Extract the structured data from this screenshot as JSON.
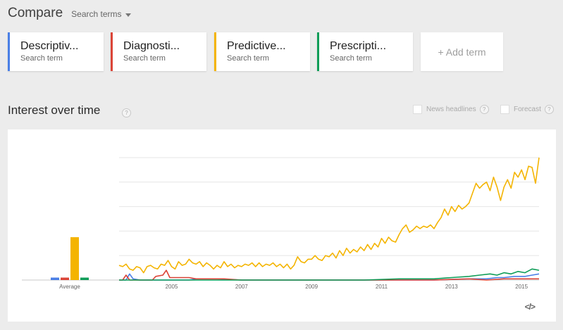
{
  "header": {
    "title": "Compare",
    "search_terms_label": "Search terms"
  },
  "terms": [
    {
      "name": "Descriptiv...",
      "sub": "Search term",
      "color": "#4a7fe6"
    },
    {
      "name": "Diagnosti...",
      "sub": "Search term",
      "color": "#db4437"
    },
    {
      "name": "Predictive...",
      "sub": "Search term",
      "color": "#f4b400"
    },
    {
      "name": "Prescripti...",
      "sub": "Search term",
      "color": "#0f9d58"
    }
  ],
  "add_term_label": "+ Add term",
  "section": {
    "title": "Interest over time",
    "help_glyph": "?"
  },
  "options": {
    "news_headlines": "News headlines",
    "forecast": "Forecast"
  },
  "embed_label": "</>",
  "chart_data": {
    "type": "line",
    "title": "",
    "xlabel": "",
    "ylabel": "",
    "x_range": [
      2004.0,
      2016.0
    ],
    "ylim": [
      0,
      100
    ],
    "x_ticks": [
      2005,
      2007,
      2009,
      2011,
      2013,
      2015
    ],
    "grid": true,
    "legend": "none",
    "average_bars": {
      "label": "Average",
      "values": [
        2,
        2,
        35,
        2
      ]
    },
    "series": [
      {
        "color": "#4a7fe6",
        "points": [
          [
            2004.0,
            0
          ],
          [
            2004.2,
            0
          ],
          [
            2004.3,
            5
          ],
          [
            2004.4,
            1
          ],
          [
            2004.6,
            0
          ],
          [
            2005.0,
            0
          ],
          [
            2006.0,
            0
          ],
          [
            2006.2,
            1
          ],
          [
            2006.8,
            1
          ],
          [
            2007.5,
            0
          ],
          [
            2009.0,
            0
          ],
          [
            2010.0,
            0
          ],
          [
            2011.0,
            0
          ],
          [
            2012.0,
            0
          ],
          [
            2013.0,
            0
          ],
          [
            2014.0,
            1
          ],
          [
            2014.5,
            1
          ],
          [
            2014.8,
            2
          ],
          [
            2015.0,
            2
          ],
          [
            2015.3,
            3
          ],
          [
            2015.6,
            3
          ],
          [
            2015.8,
            4
          ],
          [
            2016.0,
            5
          ]
        ]
      },
      {
        "color": "#db4437",
        "points": [
          [
            2004.0,
            0
          ],
          [
            2004.1,
            0
          ],
          [
            2004.2,
            4
          ],
          [
            2004.3,
            0
          ],
          [
            2004.5,
            0
          ],
          [
            2004.95,
            0
          ],
          [
            2005.05,
            3
          ],
          [
            2005.25,
            4
          ],
          [
            2005.35,
            8
          ],
          [
            2005.45,
            2
          ],
          [
            2005.6,
            2
          ],
          [
            2006.0,
            2
          ],
          [
            2006.2,
            1
          ],
          [
            2006.5,
            1
          ],
          [
            2007.0,
            1
          ],
          [
            2007.5,
            0
          ],
          [
            2008.0,
            0
          ],
          [
            2009.0,
            0
          ],
          [
            2010.0,
            0
          ],
          [
            2011.0,
            0
          ],
          [
            2012.0,
            0
          ],
          [
            2013.0,
            0
          ],
          [
            2014.0,
            1
          ],
          [
            2014.5,
            0
          ],
          [
            2015.0,
            1
          ],
          [
            2015.5,
            1
          ],
          [
            2016.0,
            1
          ]
        ]
      },
      {
        "color": "#f4b400",
        "points": [
          [
            2004.0,
            12
          ],
          [
            2004.1,
            11
          ],
          [
            2004.2,
            13
          ],
          [
            2004.3,
            9
          ],
          [
            2004.4,
            8
          ],
          [
            2004.5,
            11
          ],
          [
            2004.6,
            10
          ],
          [
            2004.7,
            6
          ],
          [
            2004.8,
            11
          ],
          [
            2004.9,
            12
          ],
          [
            2005.0,
            10
          ],
          [
            2005.1,
            9
          ],
          [
            2005.2,
            13
          ],
          [
            2005.3,
            12
          ],
          [
            2005.4,
            16
          ],
          [
            2005.5,
            11
          ],
          [
            2005.6,
            9
          ],
          [
            2005.7,
            15
          ],
          [
            2005.8,
            12
          ],
          [
            2005.9,
            13
          ],
          [
            2006.0,
            17
          ],
          [
            2006.1,
            14
          ],
          [
            2006.2,
            13
          ],
          [
            2006.3,
            15
          ],
          [
            2006.4,
            11
          ],
          [
            2006.5,
            14
          ],
          [
            2006.6,
            12
          ],
          [
            2006.7,
            9
          ],
          [
            2006.8,
            12
          ],
          [
            2006.9,
            10
          ],
          [
            2007.0,
            15
          ],
          [
            2007.1,
            11
          ],
          [
            2007.2,
            13
          ],
          [
            2007.3,
            10
          ],
          [
            2007.4,
            12
          ],
          [
            2007.5,
            11
          ],
          [
            2007.6,
            13
          ],
          [
            2007.7,
            12
          ],
          [
            2007.8,
            14
          ],
          [
            2007.9,
            11
          ],
          [
            2008.0,
            14
          ],
          [
            2008.1,
            11
          ],
          [
            2008.2,
            13
          ],
          [
            2008.3,
            12
          ],
          [
            2008.4,
            14
          ],
          [
            2008.5,
            11
          ],
          [
            2008.6,
            13
          ],
          [
            2008.7,
            10
          ],
          [
            2008.8,
            13
          ],
          [
            2008.9,
            9
          ],
          [
            2009.0,
            12
          ],
          [
            2009.1,
            19
          ],
          [
            2009.2,
            15
          ],
          [
            2009.3,
            14
          ],
          [
            2009.4,
            17
          ],
          [
            2009.5,
            17
          ],
          [
            2009.6,
            20
          ],
          [
            2009.7,
            17
          ],
          [
            2009.8,
            16
          ],
          [
            2009.9,
            20
          ],
          [
            2010.0,
            19
          ],
          [
            2010.1,
            22
          ],
          [
            2010.2,
            18
          ],
          [
            2010.3,
            24
          ],
          [
            2010.4,
            20
          ],
          [
            2010.5,
            26
          ],
          [
            2010.6,
            22
          ],
          [
            2010.7,
            25
          ],
          [
            2010.8,
            23
          ],
          [
            2010.9,
            27
          ],
          [
            2011.0,
            24
          ],
          [
            2011.1,
            29
          ],
          [
            2011.2,
            25
          ],
          [
            2011.3,
            30
          ],
          [
            2011.4,
            27
          ],
          [
            2011.5,
            34
          ],
          [
            2011.6,
            30
          ],
          [
            2011.7,
            35
          ],
          [
            2011.8,
            32
          ],
          [
            2011.9,
            31
          ],
          [
            2012.0,
            37
          ],
          [
            2012.1,
            42
          ],
          [
            2012.2,
            45
          ],
          [
            2012.3,
            39
          ],
          [
            2012.4,
            41
          ],
          [
            2012.5,
            44
          ],
          [
            2012.6,
            42
          ],
          [
            2012.7,
            44
          ],
          [
            2012.8,
            43
          ],
          [
            2012.9,
            45
          ],
          [
            2013.0,
            42
          ],
          [
            2013.1,
            47
          ],
          [
            2013.2,
            51
          ],
          [
            2013.3,
            58
          ],
          [
            2013.4,
            53
          ],
          [
            2013.5,
            60
          ],
          [
            2013.6,
            56
          ],
          [
            2013.7,
            61
          ],
          [
            2013.8,
            58
          ],
          [
            2013.9,
            60
          ],
          [
            2014.0,
            63
          ],
          [
            2014.1,
            71
          ],
          [
            2014.2,
            79
          ],
          [
            2014.3,
            75
          ],
          [
            2014.4,
            78
          ],
          [
            2014.5,
            80
          ],
          [
            2014.6,
            73
          ],
          [
            2014.7,
            84
          ],
          [
            2014.8,
            76
          ],
          [
            2014.9,
            65
          ],
          [
            2015.0,
            76
          ],
          [
            2015.1,
            82
          ],
          [
            2015.2,
            75
          ],
          [
            2015.3,
            88
          ],
          [
            2015.4,
            84
          ],
          [
            2015.5,
            90
          ],
          [
            2015.6,
            82
          ],
          [
            2015.7,
            93
          ],
          [
            2015.8,
            92
          ],
          [
            2015.9,
            79
          ],
          [
            2016.0,
            100
          ]
        ]
      },
      {
        "color": "#0f9d58",
        "points": [
          [
            2004.0,
            0
          ],
          [
            2005.0,
            0
          ],
          [
            2006.0,
            0
          ],
          [
            2007.0,
            0
          ],
          [
            2008.0,
            0
          ],
          [
            2009.0,
            0
          ],
          [
            2010.0,
            0
          ],
          [
            2011.0,
            0
          ],
          [
            2012.0,
            1
          ],
          [
            2012.5,
            1
          ],
          [
            2013.0,
            1
          ],
          [
            2013.5,
            2
          ],
          [
            2014.0,
            3
          ],
          [
            2014.3,
            4
          ],
          [
            2014.6,
            5
          ],
          [
            2014.8,
            4
          ],
          [
            2015.0,
            6
          ],
          [
            2015.2,
            5
          ],
          [
            2015.4,
            7
          ],
          [
            2015.6,
            6
          ],
          [
            2015.8,
            9
          ],
          [
            2016.0,
            8
          ]
        ]
      }
    ]
  }
}
